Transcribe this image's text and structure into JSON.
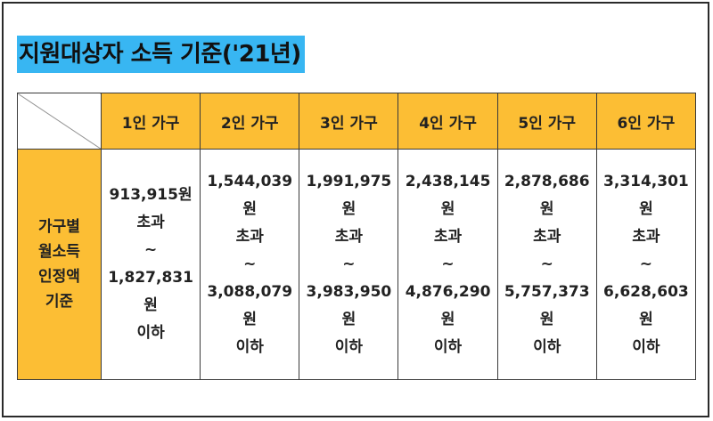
{
  "title": "지원대상자 소득 기준('21년)",
  "row_label": [
    "가구별",
    "월소득",
    "인정액",
    "기준"
  ],
  "columns": [
    {
      "header": "1인 가구",
      "min": "913,915원",
      "over": "초과",
      "tilde": "~",
      "max": "1,827,831원",
      "under": "이하"
    },
    {
      "header": "2인 가구",
      "min": "1,544,039원",
      "over": "초과",
      "tilde": "~",
      "max": "3,088,079원",
      "under": "이하"
    },
    {
      "header": "3인 가구",
      "min": "1,991,975원",
      "over": "초과",
      "tilde": "~",
      "max": "3,983,950원",
      "under": "이하"
    },
    {
      "header": "4인 가구",
      "min": "2,438,145원",
      "over": "초과",
      "tilde": "~",
      "max": "4,876,290원",
      "under": "이하"
    },
    {
      "header": "5인 가구",
      "min": "2,878,686원",
      "over": "초과",
      "tilde": "~",
      "max": "5,757,373원",
      "under": "이하"
    },
    {
      "header": "6인 가구",
      "min": "3,314,301원",
      "over": "초과",
      "tilde": "~",
      "max": "6,628,603원",
      "under": "이하"
    }
  ],
  "colors": {
    "header_fill": "#fcbe34",
    "title_highlight": "#38b6f2"
  }
}
